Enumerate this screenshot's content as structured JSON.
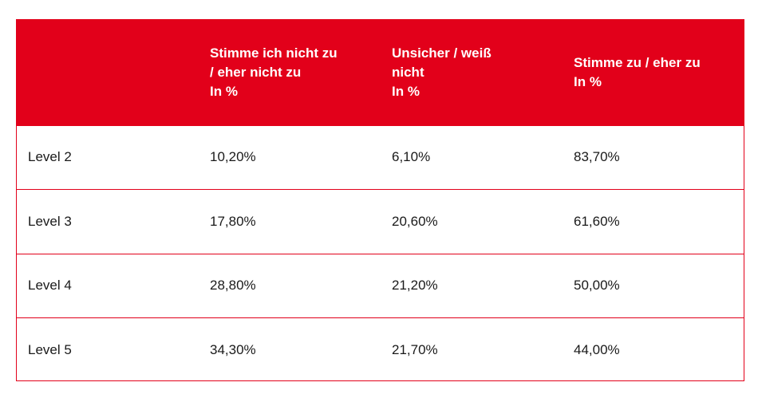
{
  "colors": {
    "header_background": "#e2001a",
    "header_text": "#ffffff",
    "border": "#e2001a",
    "body_text": "#1a1a1a"
  },
  "chart_data": {
    "type": "table",
    "columns": [
      "",
      "Stimme ich nicht zu\n/ eher nicht zu\nIn %",
      "Unsicher / weiß\nnicht\nIn %",
      "Stimme zu / eher zu\nIn %"
    ],
    "rows": [
      {
        "label": "Level 2",
        "values": [
          "10,20%",
          "6,10%",
          "83,70%"
        ]
      },
      {
        "label": "Level 3",
        "values": [
          "17,80%",
          "20,60%",
          "61,60%"
        ]
      },
      {
        "label": "Level 4",
        "values": [
          "28,80%",
          "21,20%",
          "50,00%"
        ]
      },
      {
        "label": "Level 5",
        "values": [
          "34,30%",
          "21,70%",
          "44,00%"
        ]
      }
    ]
  }
}
